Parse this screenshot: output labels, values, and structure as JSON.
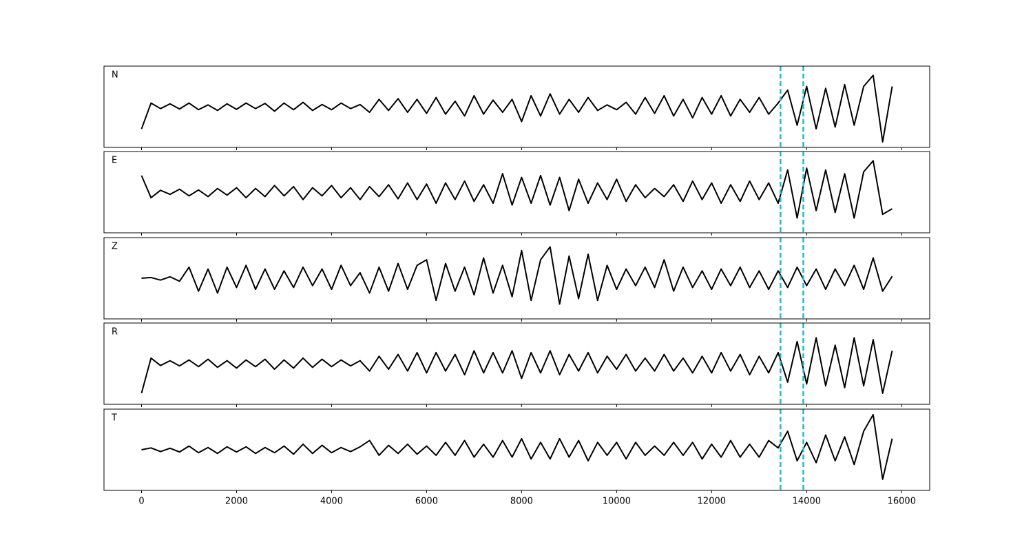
{
  "chart_data": [
    {
      "type": "line",
      "title": "N",
      "color": "#000000",
      "xlim": [
        -790,
        16590
      ],
      "ylim": [
        -1.1,
        1.1
      ],
      "xticks": [
        0,
        2000,
        4000,
        6000,
        8000,
        10000,
        12000,
        14000,
        16000
      ],
      "vlines": [
        13450,
        13930
      ],
      "vline_color": "#17becf",
      "vline_style": "dashed",
      "x": [
        0,
        200,
        400,
        600,
        800,
        1000,
        1200,
        1400,
        1600,
        1800,
        2000,
        2200,
        2400,
        2600,
        2800,
        3000,
        3200,
        3400,
        3600,
        3800,
        4000,
        4200,
        4400,
        4600,
        4800,
        5000,
        5200,
        5400,
        5600,
        5800,
        6000,
        6200,
        6400,
        6600,
        6800,
        7000,
        7200,
        7400,
        7600,
        7800,
        8000,
        8200,
        8400,
        8600,
        8800,
        9000,
        9200,
        9400,
        9600,
        9800,
        10000,
        10200,
        10400,
        10600,
        10800,
        11000,
        11200,
        11400,
        11600,
        11800,
        12000,
        12200,
        12400,
        12600,
        12800,
        13000,
        13200,
        13400,
        13600,
        13800,
        14000,
        14200,
        14400,
        14600,
        14800,
        15000,
        15200,
        15400,
        15600,
        15800
      ],
      "values": [
        -0.6,
        0.1,
        -0.05,
        0.08,
        -0.06,
        0.1,
        -0.08,
        0.05,
        -0.1,
        0.08,
        -0.07,
        0.1,
        -0.05,
        0.09,
        -0.12,
        0.1,
        -0.08,
        0.12,
        -0.1,
        0.06,
        -0.08,
        0.1,
        -0.05,
        0.06,
        -0.15,
        0.2,
        -0.1,
        0.22,
        -0.15,
        0.2,
        -0.18,
        0.25,
        -0.2,
        0.15,
        -0.25,
        0.3,
        -0.2,
        0.18,
        -0.15,
        0.2,
        -0.4,
        0.3,
        -0.25,
        0.35,
        -0.2,
        0.2,
        -0.15,
        0.25,
        -0.1,
        0.05,
        -0.08,
        0.12,
        -0.2,
        0.25,
        -0.18,
        0.3,
        -0.25,
        0.2,
        -0.3,
        0.25,
        -0.2,
        0.3,
        -0.25,
        0.2,
        -0.15,
        0.25,
        -0.2,
        0.1,
        0.45,
        -0.5,
        0.55,
        -0.6,
        0.5,
        -0.55,
        0.6,
        -0.5,
        0.55,
        0.85,
        -0.95,
        0.55
      ]
    },
    {
      "type": "line",
      "title": "E",
      "color": "#000000",
      "xlim": [
        -790,
        16590
      ],
      "ylim": [
        -1.1,
        1.1
      ],
      "xticks": [
        0,
        2000,
        4000,
        6000,
        8000,
        10000,
        12000,
        14000,
        16000
      ],
      "vlines": [
        13450,
        13930
      ],
      "vline_color": "#17becf",
      "vline_style": "dashed",
      "x": [
        0,
        200,
        400,
        600,
        800,
        1000,
        1200,
        1400,
        1600,
        1800,
        2000,
        2200,
        2400,
        2600,
        2800,
        3000,
        3200,
        3400,
        3600,
        3800,
        4000,
        4200,
        4400,
        4600,
        4800,
        5000,
        5200,
        5400,
        5600,
        5800,
        6000,
        6200,
        6400,
        6600,
        6800,
        7000,
        7200,
        7400,
        7600,
        7800,
        8000,
        8200,
        8400,
        8600,
        8800,
        9000,
        9200,
        9400,
        9600,
        9800,
        10000,
        10200,
        10400,
        10600,
        10800,
        11000,
        11200,
        11400,
        11600,
        11800,
        12000,
        12200,
        12400,
        12600,
        12800,
        13000,
        13200,
        13400,
        13600,
        13800,
        14000,
        14200,
        14400,
        14600,
        14800,
        15000,
        15200,
        15400,
        15600,
        15800
      ],
      "values": [
        0.45,
        -0.15,
        0.05,
        -0.06,
        0.08,
        -0.1,
        0.06,
        -0.12,
        0.1,
        -0.08,
        0.12,
        -0.15,
        0.1,
        -0.12,
        0.18,
        -0.1,
        0.15,
        -0.2,
        0.12,
        -0.1,
        0.18,
        -0.15,
        0.12,
        -0.2,
        0.15,
        -0.12,
        0.2,
        -0.18,
        0.25,
        -0.2,
        0.22,
        -0.3,
        0.25,
        -0.2,
        0.3,
        -0.25,
        0.2,
        -0.3,
        0.5,
        -0.35,
        0.4,
        -0.3,
        0.45,
        -0.35,
        0.4,
        -0.5,
        0.35,
        -0.3,
        0.25,
        -0.2,
        0.35,
        -0.25,
        0.2,
        -0.15,
        0.1,
        -0.12,
        0.2,
        -0.25,
        0.3,
        -0.2,
        0.25,
        -0.3,
        0.2,
        -0.25,
        0.3,
        -0.2,
        0.25,
        -0.3,
        0.6,
        -0.7,
        0.65,
        -0.5,
        0.6,
        -0.55,
        0.5,
        -0.7,
        0.55,
        0.85,
        -0.6,
        -0.45
      ]
    },
    {
      "type": "line",
      "title": "Z",
      "color": "#000000",
      "xlim": [
        -790,
        16590
      ],
      "ylim": [
        -1.1,
        1.1
      ],
      "xticks": [
        0,
        2000,
        4000,
        6000,
        8000,
        10000,
        12000,
        14000,
        16000
      ],
      "vlines": [
        13450,
        13930
      ],
      "vline_color": "#17becf",
      "vline_style": "dashed",
      "x": [
        0,
        200,
        400,
        600,
        800,
        1000,
        1200,
        1400,
        1600,
        1800,
        2000,
        2200,
        2400,
        2600,
        2800,
        3000,
        3200,
        3400,
        3600,
        3800,
        4000,
        4200,
        4400,
        4600,
        4800,
        5000,
        5200,
        5400,
        5600,
        5800,
        6000,
        6200,
        6400,
        6600,
        6800,
        7000,
        7200,
        7400,
        7600,
        7800,
        8000,
        8200,
        8400,
        8600,
        8800,
        9000,
        9200,
        9400,
        9600,
        9800,
        10000,
        10200,
        10400,
        10600,
        10800,
        11000,
        11200,
        11400,
        11600,
        11800,
        12000,
        12200,
        12400,
        12600,
        12800,
        13000,
        13200,
        13400,
        13600,
        13800,
        14000,
        14200,
        14400,
        14600,
        14800,
        15000,
        15200,
        15400,
        15600,
        15800
      ],
      "values": [
        0.0,
        0.02,
        -0.05,
        0.04,
        -0.08,
        0.3,
        -0.35,
        0.25,
        -0.4,
        0.3,
        -0.25,
        0.35,
        -0.3,
        0.25,
        -0.3,
        0.2,
        -0.25,
        0.3,
        -0.2,
        0.25,
        -0.3,
        0.35,
        -0.2,
        0.15,
        -0.4,
        0.3,
        -0.35,
        0.4,
        -0.3,
        0.35,
        0.5,
        -0.6,
        0.4,
        -0.35,
        0.3,
        -0.45,
        0.55,
        -0.4,
        0.35,
        -0.5,
        0.75,
        -0.6,
        0.5,
        0.85,
        -0.7,
        0.6,
        -0.55,
        0.65,
        -0.6,
        0.35,
        -0.3,
        0.25,
        -0.2,
        0.3,
        -0.25,
        0.5,
        -0.35,
        0.3,
        -0.25,
        0.2,
        -0.3,
        0.25,
        -0.2,
        0.3,
        -0.25,
        0.2,
        -0.3,
        0.2,
        -0.25,
        0.3,
        -0.2,
        0.25,
        -0.3,
        0.25,
        -0.2,
        0.35,
        -0.3,
        0.55,
        -0.35,
        0.05
      ]
    },
    {
      "type": "line",
      "title": "R",
      "color": "#000000",
      "xlim": [
        -790,
        16590
      ],
      "ylim": [
        -1.1,
        1.1
      ],
      "xticks": [
        0,
        2000,
        4000,
        6000,
        8000,
        10000,
        12000,
        14000,
        16000
      ],
      "vlines": [
        13450,
        13930
      ],
      "vline_color": "#17becf",
      "vline_style": "dashed",
      "x": [
        0,
        200,
        400,
        600,
        800,
        1000,
        1200,
        1400,
        1600,
        1800,
        2000,
        2200,
        2400,
        2600,
        2800,
        3000,
        3200,
        3400,
        3600,
        3800,
        4000,
        4200,
        4400,
        4600,
        4800,
        5000,
        5200,
        5400,
        5600,
        5800,
        6000,
        6200,
        6400,
        6600,
        6800,
        7000,
        7200,
        7400,
        7600,
        7800,
        8000,
        8200,
        8400,
        8600,
        8800,
        9000,
        9200,
        9400,
        9600,
        9800,
        10000,
        10200,
        10400,
        10600,
        10800,
        11000,
        11200,
        11400,
        11600,
        11800,
        12000,
        12200,
        12400,
        12600,
        12800,
        13000,
        13200,
        13400,
        13600,
        13800,
        14000,
        14200,
        14400,
        14600,
        14800,
        15000,
        15200,
        15400,
        15600,
        15800
      ],
      "values": [
        -0.8,
        0.15,
        -0.05,
        0.08,
        -0.06,
        0.1,
        -0.08,
        0.12,
        -0.1,
        0.08,
        -0.12,
        0.1,
        -0.08,
        0.12,
        -0.15,
        0.1,
        -0.12,
        0.15,
        -0.1,
        0.12,
        -0.08,
        0.1,
        -0.06,
        0.08,
        -0.2,
        0.2,
        -0.15,
        0.25,
        -0.2,
        0.3,
        -0.25,
        0.3,
        -0.2,
        0.25,
        -0.3,
        0.35,
        -0.25,
        0.3,
        -0.25,
        0.35,
        -0.4,
        0.3,
        -0.25,
        0.35,
        -0.3,
        0.25,
        -0.2,
        0.3,
        -0.25,
        0.2,
        -0.15,
        0.25,
        -0.2,
        0.15,
        -0.2,
        0.25,
        -0.2,
        0.15,
        -0.25,
        0.2,
        -0.25,
        0.3,
        -0.2,
        0.25,
        -0.3,
        0.2,
        -0.25,
        0.3,
        -0.5,
        0.6,
        -0.55,
        0.7,
        -0.6,
        0.5,
        -0.65,
        0.7,
        -0.6,
        0.65,
        -0.8,
        0.35
      ]
    },
    {
      "type": "line",
      "title": "T",
      "color": "#000000",
      "xlim": [
        -790,
        16590
      ],
      "ylim": [
        -1.1,
        1.1
      ],
      "xticks": [
        0,
        2000,
        4000,
        6000,
        8000,
        10000,
        12000,
        14000,
        16000
      ],
      "vlines": [
        13450,
        13930
      ],
      "vline_color": "#17becf",
      "vline_style": "dashed",
      "x": [
        0,
        200,
        400,
        600,
        800,
        1000,
        1200,
        1400,
        1600,
        1800,
        2000,
        2200,
        2400,
        2600,
        2800,
        3000,
        3200,
        3400,
        3600,
        3800,
        4000,
        4200,
        4400,
        4600,
        4800,
        5000,
        5200,
        5400,
        5600,
        5800,
        6000,
        6200,
        6400,
        6600,
        6800,
        7000,
        7200,
        7400,
        7600,
        7800,
        8000,
        8200,
        8400,
        8600,
        8800,
        9000,
        9200,
        9400,
        9600,
        9800,
        10000,
        10200,
        10400,
        10600,
        10800,
        11000,
        11200,
        11400,
        11600,
        11800,
        12000,
        12200,
        12400,
        12600,
        12800,
        13000,
        13200,
        13400,
        13600,
        13800,
        14000,
        14200,
        14400,
        14600,
        14800,
        15000,
        15200,
        15400,
        15600,
        15800
      ],
      "values": [
        0.0,
        0.05,
        -0.05,
        0.04,
        -0.06,
        0.1,
        -0.08,
        0.06,
        -0.1,
        0.08,
        -0.06,
        0.08,
        -0.1,
        0.06,
        -0.08,
        0.1,
        -0.12,
        0.15,
        -0.1,
        0.12,
        -0.08,
        0.06,
        -0.05,
        0.08,
        0.25,
        -0.15,
        0.12,
        -0.1,
        0.15,
        -0.12,
        0.1,
        -0.15,
        0.2,
        -0.15,
        0.25,
        -0.2,
        0.15,
        -0.2,
        0.25,
        -0.2,
        0.3,
        -0.25,
        0.2,
        -0.25,
        0.3,
        -0.2,
        0.25,
        -0.3,
        0.2,
        -0.15,
        0.2,
        -0.25,
        0.2,
        -0.15,
        0.1,
        -0.15,
        0.2,
        -0.15,
        0.2,
        -0.25,
        0.15,
        -0.2,
        0.25,
        -0.2,
        0.15,
        -0.2,
        0.25,
        0.05,
        0.5,
        -0.3,
        0.2,
        -0.35,
        0.4,
        -0.3,
        0.35,
        -0.4,
        0.5,
        0.95,
        -0.8,
        0.3
      ]
    }
  ]
}
